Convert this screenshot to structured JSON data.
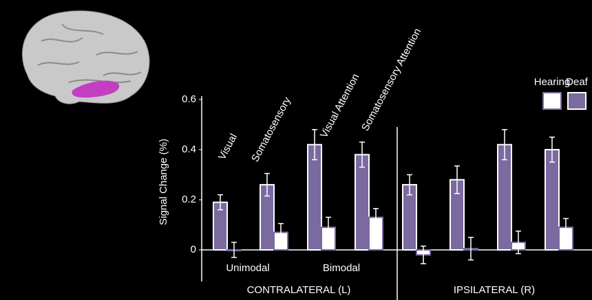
{
  "chart_data": {
    "type": "bar",
    "y_label": "Signal Change (%)",
    "categories": [
      "Visual",
      "Somatosensory",
      "Visual Attention",
      "Somatosensory Attention",
      null,
      null,
      null,
      null
    ],
    "series": [
      {
        "name": "Deaf",
        "color": "#7b6aa0",
        "values": [
          0.19,
          0.26,
          0.42,
          0.38,
          0.26,
          0.28,
          0.42,
          0.4
        ],
        "errors": [
          0.03,
          0.045,
          0.06,
          0.05,
          0.04,
          0.055,
          0.06,
          0.05
        ]
      },
      {
        "name": "Hearing",
        "color": "#ffffff",
        "values": [
          0.0,
          0.07,
          0.09,
          0.13,
          -0.02,
          0.005,
          0.03,
          0.09
        ],
        "errors": [
          0.03,
          0.035,
          0.04,
          0.035,
          0.035,
          0.045,
          0.045,
          0.035
        ]
      }
    ],
    "annotations": [
      "Unimodal",
      "Bimodal",
      "CONTRALATERAL (L)",
      "IPSILATERAL (R)"
    ],
    "ylim": [
      -0.1,
      0.6
    ],
    "yticks": [
      0,
      0.2,
      0.4,
      0.6
    ],
    "legend": "top-right"
  }
}
